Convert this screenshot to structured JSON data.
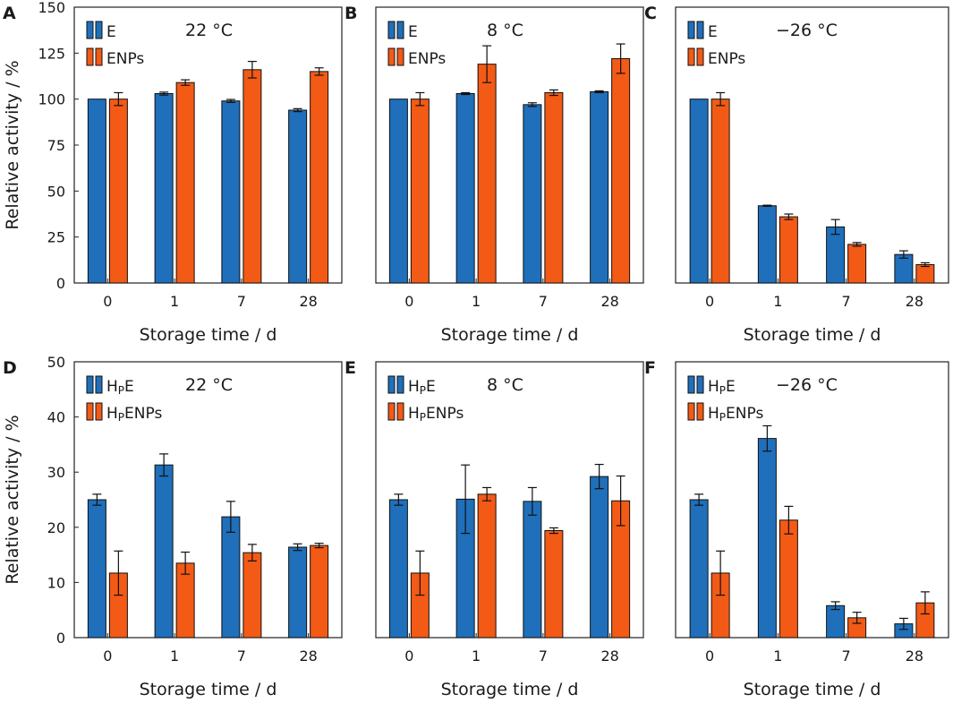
{
  "colors": {
    "e_series": "#1f6fba",
    "enp_series": "#f25a16",
    "axis": "#222222"
  },
  "chart_data": [
    {
      "type": "bar",
      "panel": "A",
      "condition": "22 °C",
      "categories": [
        "0",
        "1",
        "7",
        "28"
      ],
      "xlabel": "Storage time / d",
      "ylabel": "Relative activity / %",
      "ylim": [
        0,
        150
      ],
      "yticks": [
        "0",
        "25",
        "50",
        "75",
        "100",
        "125",
        "150"
      ],
      "series": [
        {
          "name": "E",
          "values": [
            100,
            103,
            99,
            94
          ],
          "errors": [
            0,
            0.8,
            0.8,
            0.8
          ]
        },
        {
          "name": "ENPs",
          "values": [
            100,
            109,
            116,
            115
          ],
          "errors": [
            3.5,
            1.5,
            4.5,
            2
          ]
        }
      ]
    },
    {
      "type": "bar",
      "panel": "B",
      "condition": "8 °C",
      "categories": [
        "0",
        "1",
        "7",
        "28"
      ],
      "xlabel": "Storage time / d",
      "ylabel": "",
      "ylim": [
        0,
        150
      ],
      "yticks": [],
      "series": [
        {
          "name": "E",
          "values": [
            100,
            103,
            97,
            104
          ],
          "errors": [
            0,
            0.5,
            1,
            0.5
          ]
        },
        {
          "name": "ENPs",
          "values": [
            100,
            119,
            103.5,
            122
          ],
          "errors": [
            3.5,
            10,
            1.5,
            8
          ]
        }
      ]
    },
    {
      "type": "bar",
      "panel": "C",
      "condition": "−26 °C",
      "categories": [
        "0",
        "1",
        "7",
        "28"
      ],
      "xlabel": "Storage time / d",
      "ylabel": "",
      "ylim": [
        0,
        150
      ],
      "yticks": [],
      "series": [
        {
          "name": "E",
          "values": [
            100,
            42,
            30.5,
            15.5
          ],
          "errors": [
            0,
            0.3,
            4,
            2
          ]
        },
        {
          "name": "ENPs",
          "values": [
            100,
            36,
            21,
            10
          ],
          "errors": [
            3.5,
            1.5,
            1,
            1
          ]
        }
      ]
    },
    {
      "type": "bar",
      "panel": "D",
      "condition": "22 °C",
      "categories": [
        "0",
        "1",
        "7",
        "28"
      ],
      "xlabel": "Storage time / d",
      "ylabel": "Relative activity / %",
      "ylim": [
        0,
        50
      ],
      "yticks": [
        "0",
        "10",
        "20",
        "30",
        "40",
        "50"
      ],
      "series": [
        {
          "name": "HPE",
          "values": [
            25,
            31.3,
            21.9,
            16.4
          ],
          "errors": [
            1,
            2,
            2.8,
            0.6
          ]
        },
        {
          "name": "HPENPs",
          "values": [
            11.7,
            13.5,
            15.4,
            16.7
          ],
          "errors": [
            4,
            2,
            1.5,
            0.4
          ]
        }
      ]
    },
    {
      "type": "bar",
      "panel": "E",
      "condition": "8 °C",
      "categories": [
        "0",
        "1",
        "7",
        "28"
      ],
      "xlabel": "Storage time / d",
      "ylabel": "",
      "ylim": [
        0,
        50
      ],
      "yticks": [],
      "series": [
        {
          "name": "HPE",
          "values": [
            25,
            25.1,
            24.7,
            29.2
          ],
          "errors": [
            1,
            6.2,
            2.5,
            2.2
          ]
        },
        {
          "name": "HPENPs",
          "values": [
            11.7,
            26,
            19.4,
            24.8
          ],
          "errors": [
            4,
            1.2,
            0.5,
            4.5
          ]
        }
      ]
    },
    {
      "type": "bar",
      "panel": "F",
      "condition": "−26 °C",
      "categories": [
        "0",
        "1",
        "7",
        "28"
      ],
      "xlabel": "Storage time / d",
      "ylabel": "",
      "ylim": [
        0,
        50
      ],
      "yticks": [],
      "series": [
        {
          "name": "HPE",
          "values": [
            25,
            36.1,
            5.8,
            2.5
          ],
          "errors": [
            1,
            2.3,
            0.7,
            1
          ]
        },
        {
          "name": "HPENPs",
          "values": [
            11.7,
            21.3,
            3.6,
            6.3
          ],
          "errors": [
            4,
            2.5,
            1,
            2
          ]
        }
      ]
    }
  ]
}
